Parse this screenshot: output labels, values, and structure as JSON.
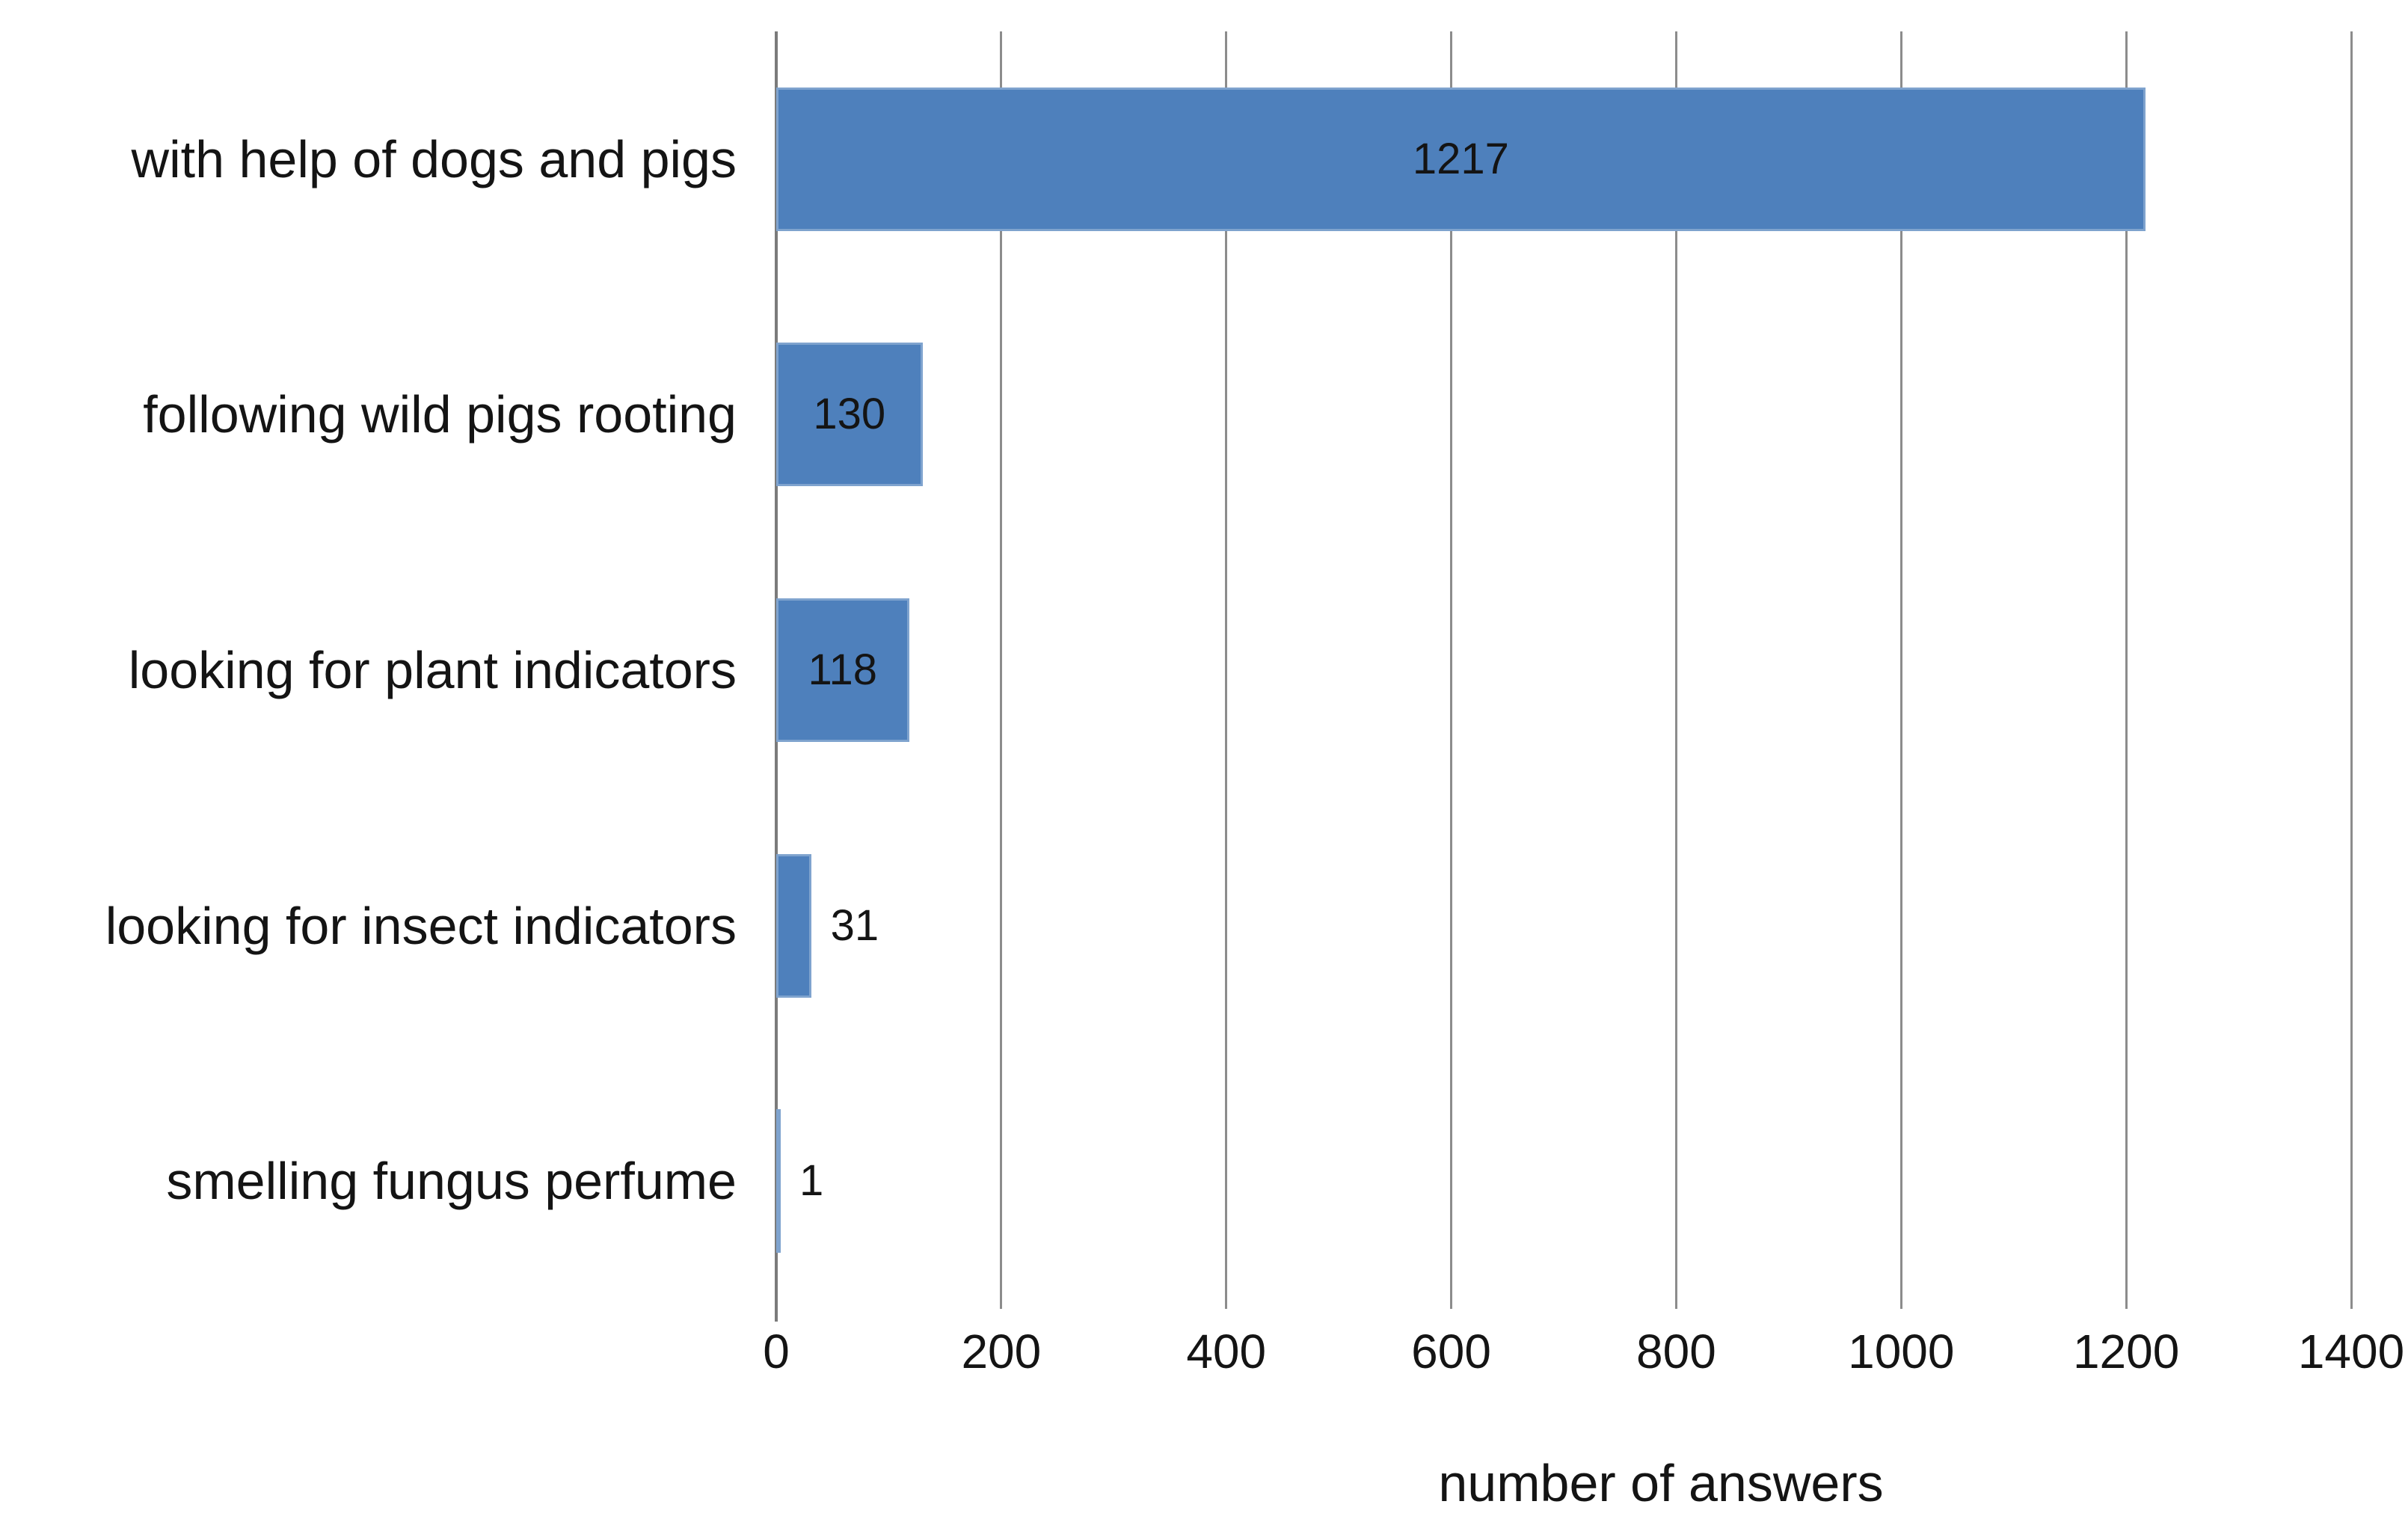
{
  "chart_data": {
    "type": "bar",
    "orientation": "horizontal",
    "title": "",
    "xlabel": "number of answers",
    "ylabel": "",
    "categories": [
      "with help of dogs and pigs",
      "following wild pigs rooting",
      "looking for plant indicators",
      "looking for insect indicators",
      "smelling fungus perfume"
    ],
    "values": [
      1217,
      130,
      118,
      31,
      1
    ],
    "data_labels": [
      "1217",
      "130",
      "118",
      "31",
      "1"
    ],
    "x_ticks": [
      0,
      200,
      400,
      600,
      800,
      1000,
      1200,
      1400
    ],
    "xlim": [
      0,
      1400
    ],
    "grid": "vertical-gridlines-on",
    "legend_position": "none",
    "colors": {
      "bar_fill": "#4E80BC",
      "gridline": "#8C8C8C",
      "axis_line": "#7B7B7B",
      "text": "#141414",
      "background": "#FFFFFF"
    }
  }
}
